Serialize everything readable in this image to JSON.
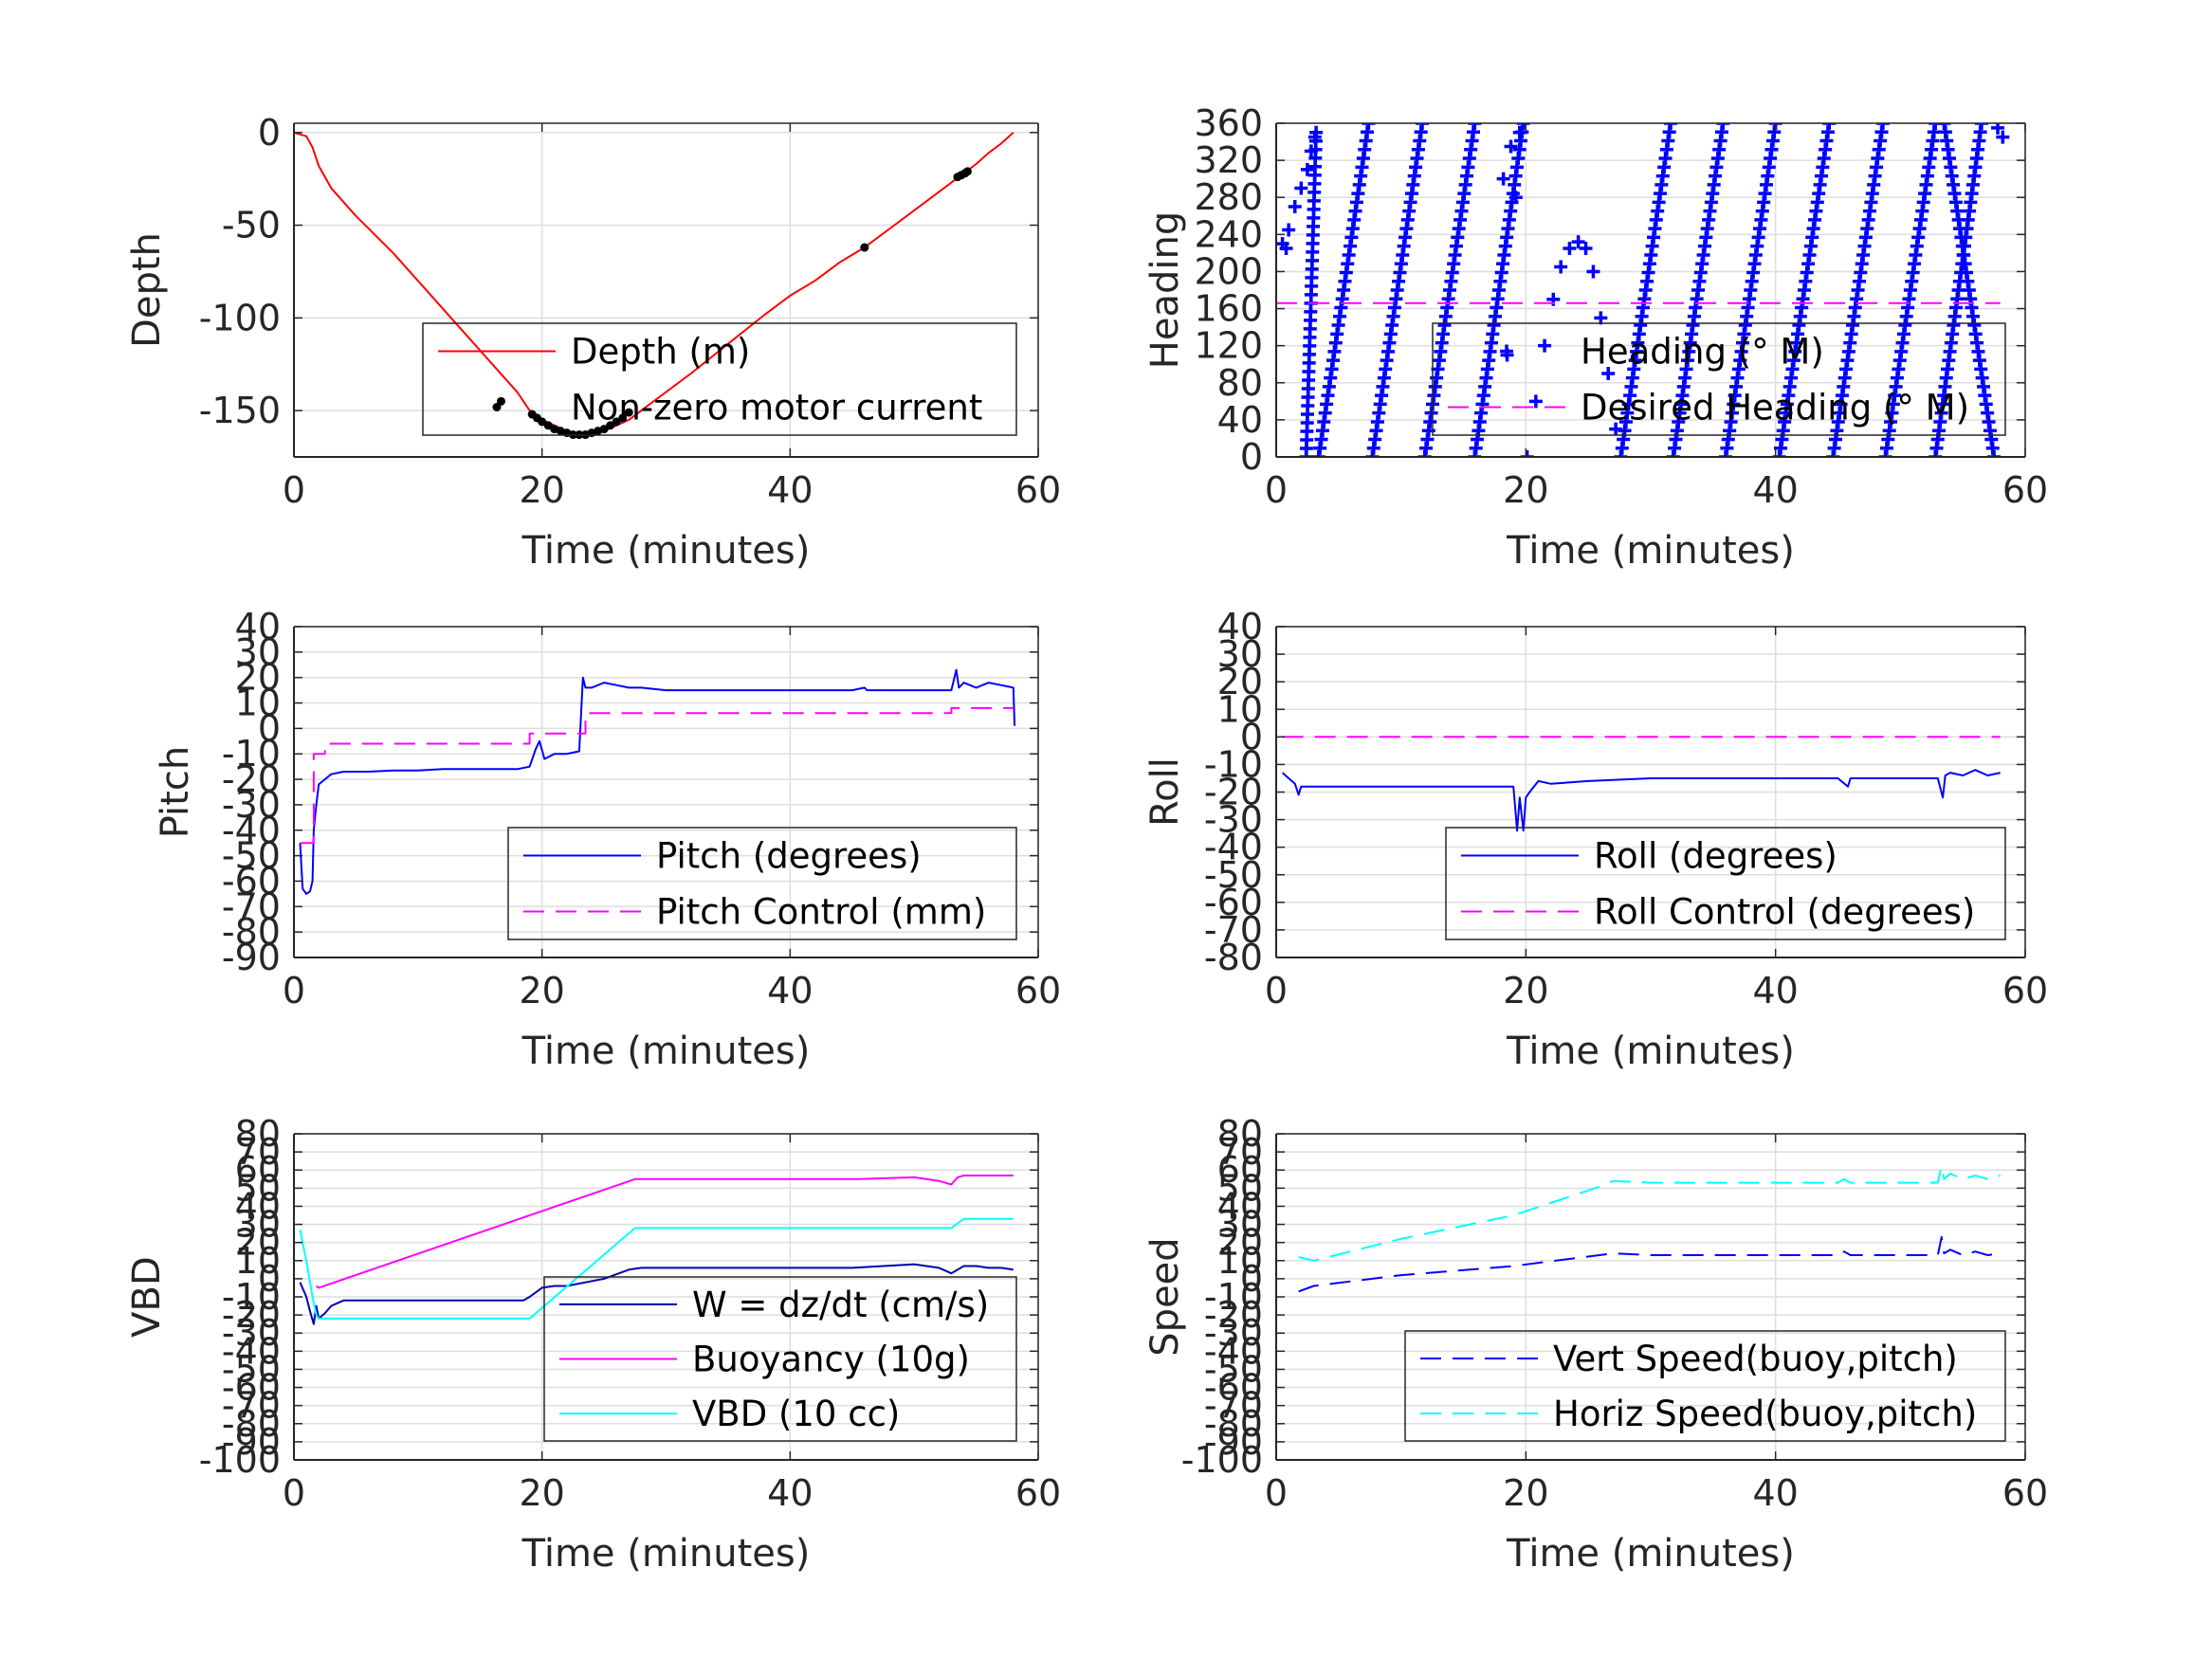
{
  "colors": {
    "depth": "#ff0000",
    "motor": "#000000",
    "blue": "#0000ff",
    "navy": "#0000b0",
    "magenta": "#ff00ff",
    "cyan": "#00ffff",
    "grid": "#dedede",
    "axis": "#262626"
  },
  "chart_data": [
    {
      "id": "depth",
      "type": "line",
      "xlabel": "Time (minutes)",
      "ylabel": "Depth",
      "xlim": [
        0,
        60
      ],
      "ylim": [
        -175,
        5
      ],
      "xticks": [
        0,
        20,
        40,
        60
      ],
      "yticks": [
        0,
        -50,
        -100,
        -150
      ],
      "legend": "top-right",
      "series": [
        {
          "name": "Depth (m)",
          "style": "line",
          "color": "#ff0000",
          "x": [
            0,
            1,
            1.5,
            2,
            3,
            5,
            8,
            10,
            12,
            14,
            16,
            18,
            19,
            20,
            21,
            22,
            23,
            24,
            25,
            26,
            27,
            28,
            30,
            32,
            35,
            38,
            40,
            42,
            44,
            46,
            48,
            50,
            52,
            53,
            54,
            55,
            56,
            57,
            58
          ],
          "y": [
            0,
            -2,
            -8,
            -18,
            -30,
            -45,
            -65,
            -80,
            -95,
            -110,
            -125,
            -140,
            -150,
            -155,
            -158,
            -161,
            -163,
            -163,
            -161,
            -158,
            -155,
            -150,
            -140,
            -130,
            -114,
            -98,
            -88,
            -80,
            -70,
            -62,
            -52,
            -42,
            -32,
            -27,
            -22,
            -17,
            -11,
            -6,
            0
          ]
        },
        {
          "name": "Non-zero motor current",
          "style": "dot",
          "color": "#000000",
          "x": [
            16.7,
            19.2,
            19.6,
            20,
            20.5,
            21,
            21.5,
            22,
            22.5,
            23,
            23.5,
            24,
            24.5,
            25,
            25.5,
            26,
            26.5,
            27,
            46,
            53.5,
            53.8,
            54.1,
            54.3
          ],
          "y": [
            -145,
            -152,
            -154,
            -156,
            -158,
            -160,
            -161,
            -162,
            -163,
            -163,
            -163,
            -162,
            -161,
            -160,
            -158,
            -156,
            -154,
            -151,
            -62,
            -24,
            -23,
            -22,
            -21
          ]
        }
      ]
    },
    {
      "id": "heading",
      "type": "scatter",
      "xlabel": "Time (minutes)",
      "ylabel": "Heading",
      "xlim": [
        0,
        60
      ],
      "ylim": [
        0,
        360
      ],
      "xticks": [
        0,
        20,
        40,
        60
      ],
      "yticks": [
        0,
        40,
        80,
        120,
        160,
        200,
        240,
        280,
        320,
        360
      ],
      "legend": "top-right",
      "series": [
        {
          "name": "Heading (° M)",
          "style": "plus",
          "color": "#0000ff",
          "sweeps": [
            [
              3.2,
              350,
              2.4,
              0
            ],
            [
              7.4,
              360,
              3.4,
              0
            ],
            [
              11.7,
              360,
              7.7,
              0
            ],
            [
              15.9,
              360,
              11.9,
              0
            ],
            [
              19.8,
              360,
              15.9,
              0
            ],
            [
              27.6,
              0,
              31.6,
              360
            ],
            [
              31.8,
              0,
              35.8,
              360
            ],
            [
              36.0,
              0,
              40.0,
              360
            ],
            [
              40.3,
              0,
              44.3,
              360
            ],
            [
              44.6,
              0,
              48.6,
              360
            ],
            [
              48.8,
              0,
              52.8,
              360
            ],
            [
              52.8,
              0,
              56.5,
              360
            ],
            [
              57.5,
              0,
              53.5,
              360
            ]
          ],
          "x": [
            0.5,
            0.8,
            1,
            1.5,
            2,
            2.5,
            2.8,
            3.1,
            20.1,
            20.8,
            21.5,
            22.2,
            22.8,
            23.5,
            24.2,
            24.8,
            25.4,
            26,
            26.6,
            27.2,
            19.5,
            18.8,
            18.2,
            19.2,
            18.5,
            57.8,
            58.2
          ],
          "y": [
            230,
            225,
            245,
            270,
            290,
            310,
            330,
            345,
            0,
            60,
            120,
            170,
            205,
            225,
            232,
            225,
            200,
            150,
            90,
            30,
            350,
            335,
            300,
            280,
            110,
            355,
            345
          ]
        },
        {
          "name": "Desired Heading (° M)",
          "style": "dash",
          "color": "#ff00ff",
          "x": [
            0,
            58
          ],
          "y": [
            166,
            166
          ]
        }
      ]
    },
    {
      "id": "pitch",
      "type": "line",
      "xlabel": "Time (minutes)",
      "ylabel": "Pitch",
      "xlim": [
        0,
        60
      ],
      "ylim": [
        -90,
        40
      ],
      "xticks": [
        0,
        20,
        40,
        60
      ],
      "yticks": [
        40,
        30,
        20,
        10,
        0,
        -10,
        -20,
        -30,
        -40,
        -50,
        -60,
        -70,
        -80,
        -90
      ],
      "legend": "top-right",
      "series": [
        {
          "name": "Pitch (degrees)",
          "style": "line",
          "color": "#0000ff",
          "x": [
            0.5,
            0.7,
            1,
            1.3,
            1.5,
            1.6,
            1.8,
            2,
            2.5,
            3,
            4,
            6,
            8,
            10,
            12,
            14,
            16,
            18,
            19,
            19.5,
            19.8,
            20.2,
            21,
            22,
            23,
            23.3,
            23.5,
            24,
            25,
            26,
            27,
            28,
            30,
            35,
            40,
            45,
            46,
            46.2,
            50,
            53,
            53.4,
            53.6,
            54,
            55,
            56,
            57,
            58,
            58.1
          ],
          "y": [
            -45,
            -63,
            -65,
            -64,
            -60,
            -40,
            -30,
            -22,
            -20,
            -18,
            -17,
            -17,
            -16.5,
            -16.5,
            -16,
            -16,
            -16,
            -16,
            -15,
            -8,
            -5,
            -12,
            -10,
            -10,
            -9,
            20,
            16,
            16,
            18,
            17,
            16,
            16,
            15,
            15,
            15,
            15,
            16,
            15,
            15,
            15,
            23,
            16,
            18,
            16,
            18,
            17,
            16,
            1
          ]
        },
        {
          "name": "Pitch Control (mm)",
          "style": "dash",
          "color": "#ff00ff",
          "x": [
            0.5,
            1.6,
            1.6,
            2.5,
            2.5,
            19,
            19,
            23.5,
            23.5,
            53,
            53,
            58
          ],
          "y": [
            -45,
            -45,
            -10,
            -10,
            -6,
            -6,
            -2,
            -2,
            6,
            6,
            8,
            8
          ]
        }
      ]
    },
    {
      "id": "roll",
      "type": "line",
      "xlabel": "Time (minutes)",
      "ylabel": "Roll",
      "xlim": [
        0,
        60
      ],
      "ylim": [
        -80,
        40
      ],
      "xticks": [
        0,
        20,
        40,
        60
      ],
      "yticks": [
        40,
        30,
        20,
        10,
        0,
        -10,
        -20,
        -30,
        -40,
        -50,
        -60,
        -70,
        -80
      ],
      "legend": "top-right",
      "series": [
        {
          "name": "Roll (degrees)",
          "style": "line",
          "color": "#0000ff",
          "x": [
            0.5,
            1,
            1.5,
            1.8,
            2,
            3,
            5,
            10,
            15,
            19,
            19.3,
            19.5,
            19.8,
            20,
            20.3,
            21,
            22,
            25,
            30,
            35,
            40,
            45,
            45.8,
            46,
            50,
            53,
            53.4,
            53.6,
            54,
            55,
            56,
            57,
            58
          ],
          "y": [
            -13,
            -15,
            -17,
            -21,
            -18,
            -18,
            -18,
            -18,
            -18,
            -18,
            -34,
            -22,
            -34,
            -22,
            -20,
            -16,
            -17,
            -16,
            -15,
            -15,
            -15,
            -15,
            -18,
            -15,
            -15,
            -15,
            -22,
            -14,
            -13,
            -14,
            -12,
            -14,
            -13
          ]
        },
        {
          "name": "Roll Control (degrees)",
          "style": "dash",
          "color": "#ff00ff",
          "x": [
            0.5,
            58
          ],
          "y": [
            0,
            0
          ]
        }
      ]
    },
    {
      "id": "vbd",
      "type": "line",
      "xlabel": "Time (minutes)",
      "ylabel": "VBD",
      "xlim": [
        0,
        60
      ],
      "ylim": [
        -100,
        80
      ],
      "xticks": [
        0,
        20,
        40,
        60
      ],
      "yticks": [
        80,
        70,
        60,
        50,
        40,
        30,
        20,
        10,
        0,
        -10,
        -20,
        -30,
        -40,
        -50,
        -60,
        -70,
        -80,
        -90,
        -100
      ],
      "legend": "top-right",
      "series": [
        {
          "name": "W = dz/dt (cm/s)",
          "style": "line",
          "color": "#0000b0",
          "x": [
            0.5,
            1,
            1.3,
            1.6,
            1.8,
            2,
            2.5,
            3,
            4,
            6,
            10,
            15,
            18.5,
            19,
            20,
            21,
            22,
            25,
            27,
            28,
            30,
            35,
            40,
            45,
            50,
            52,
            53,
            54,
            55,
            56,
            57,
            58
          ],
          "y": [
            -2,
            -10,
            -18,
            -25,
            -15,
            -22,
            -19,
            -15,
            -12,
            -12,
            -12,
            -12,
            -12,
            -10,
            -5,
            -4,
            -4,
            0,
            5,
            6,
            6,
            6,
            6,
            6,
            8,
            6,
            3,
            7,
            7,
            6,
            6,
            5
          ]
        },
        {
          "name": "Buoyancy (10g)",
          "style": "line",
          "color": "#ff00ff",
          "x": [
            1.8,
            2,
            27.5,
            45.5,
            50,
            52,
            53,
            53.5,
            54,
            58
          ],
          "y": [
            -4,
            -5,
            55,
            55,
            56,
            54,
            52,
            56,
            57,
            57
          ]
        },
        {
          "name": "VBD (10 cc)",
          "style": "line",
          "color": "#00ffff",
          "x": [
            0.5,
            1,
            1.5,
            1.8,
            2,
            10,
            19,
            27.5,
            53,
            54,
            58
          ],
          "y": [
            27,
            10,
            -10,
            -20,
            -22,
            -22,
            -22,
            28,
            28,
            33,
            33
          ]
        }
      ]
    },
    {
      "id": "speed",
      "type": "line",
      "xlabel": "Time (minutes)",
      "ylabel": "Speed",
      "xlim": [
        0,
        60
      ],
      "ylim": [
        -100,
        80
      ],
      "xticks": [
        0,
        20,
        40,
        60
      ],
      "yticks": [
        80,
        70,
        60,
        50,
        40,
        30,
        20,
        10,
        0,
        -10,
        -20,
        -30,
        -40,
        -50,
        -60,
        -70,
        -80,
        -90,
        -100
      ],
      "legend": "top-right",
      "series": [
        {
          "name": "Vert Speed(buoy,pitch)",
          "style": "dash",
          "color": "#0000ff",
          "x": [
            1.8,
            3,
            10,
            19,
            27,
            30,
            35,
            40,
            45,
            45.5,
            46,
            50,
            53,
            53.3,
            53.5,
            54,
            55,
            56,
            57,
            58
          ],
          "y": [
            -7,
            -4,
            2,
            7,
            14,
            13,
            13,
            13,
            13,
            15,
            13,
            13,
            13,
            23,
            14,
            16,
            13,
            15,
            13,
            14
          ]
        },
        {
          "name": "Horiz Speed(buoy,pitch)",
          "style": "dash",
          "color": "#00ffff",
          "x": [
            1.8,
            3,
            10,
            19,
            26,
            27,
            30,
            35,
            40,
            45,
            45.5,
            46,
            50,
            53,
            53.3,
            53.5,
            54,
            55,
            56,
            57,
            58
          ],
          "y": [
            12,
            10,
            22,
            35,
            51,
            54,
            53,
            53,
            53,
            53,
            55,
            53,
            53,
            53,
            62,
            55,
            58,
            55,
            57,
            55,
            57
          ]
        }
      ]
    }
  ]
}
